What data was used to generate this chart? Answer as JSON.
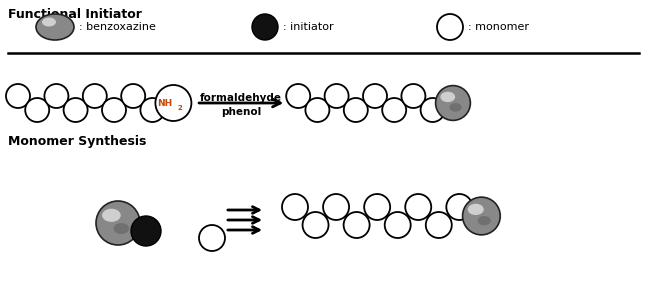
{
  "title_top": "Functional Initiator",
  "title_mid": "Monomer Synthesis",
  "legend_benzoxazine": ": benzoxazine",
  "legend_initiator": ": initiator",
  "legend_monomer": ": monomer",
  "label_phenol": "phenol",
  "label_formaldehyde": "formaldehyde",
  "label_nh2": "NH",
  "label_nh2_sub": "2",
  "bg_color": "#ffffff",
  "text_color": "#000000",
  "nh2_color": "#cc4400",
  "fig_width": 6.47,
  "fig_height": 2.98,
  "dpi": 100
}
